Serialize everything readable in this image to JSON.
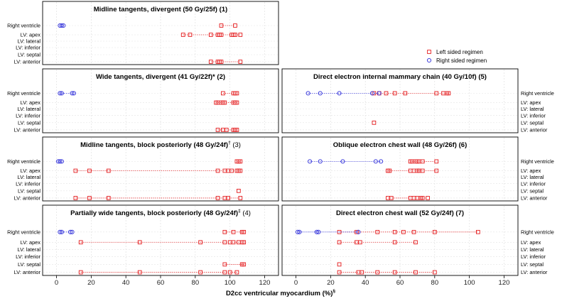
{
  "chart_data": {
    "type": "scatter",
    "xlabel": "D2cc ventricular myocardium (%)",
    "xlabel_sup": "§",
    "xlim": [
      -8,
      128
    ],
    "xticks": [
      0,
      20,
      40,
      60,
      80,
      100,
      120
    ],
    "grid": true,
    "row_labels": [
      "Right ventricle",
      "LV: apex",
      "LV: lateral",
      "LV: inferior",
      "LV: septal",
      "LV: anterior"
    ],
    "legend": {
      "position": "right",
      "entries": [
        {
          "label": "Left sided regimen",
          "color": "#e41a1c",
          "marker": "square"
        },
        {
          "label": "Right sided regimen",
          "color": "#2b2bd9",
          "marker": "circle"
        }
      ]
    },
    "panels": [
      {
        "title": "Midline tangents, divergent (50 Gy/25f)",
        "title_sup": "",
        "title_num": "(1)",
        "left": {
          "Right ventricle": [
            95,
            103
          ],
          "LV: apex": [
            73,
            77,
            89,
            93,
            94,
            95,
            101,
            102,
            103,
            106
          ],
          "LV: anterior": [
            89,
            93,
            94,
            95,
            106
          ]
        },
        "right": {
          "Right ventricle": [
            2,
            3,
            4
          ]
        }
      },
      {
        "title": "Wide tangents, divergent (41 Gy/22f)*",
        "title_sup": "",
        "title_num": "(2)",
        "left": {
          "Right ventricle": [
            96,
            102,
            103,
            104
          ],
          "LV: apex": [
            92,
            93,
            95,
            96,
            97,
            102,
            103,
            104
          ],
          "LV: anterior": [
            93,
            96,
            98,
            102,
            103,
            104
          ]
        },
        "right": {
          "Right ventricle": [
            2,
            3,
            9,
            10
          ]
        }
      },
      {
        "title": "Midline tangents, block posteriorly (48 Gy/24f)",
        "title_sup": "†",
        "title_num": "(3)",
        "left": {
          "Right ventricle": [
            104,
            105,
            106
          ],
          "LV: apex": [
            11,
            19,
            30,
            93,
            97,
            99,
            101,
            104,
            105,
            106
          ],
          "LV: septal": [
            105
          ],
          "LV: anterior": [
            11,
            19,
            30,
            93,
            97,
            99,
            106
          ]
        },
        "right": {
          "Right ventricle": [
            1,
            2,
            3
          ]
        }
      },
      {
        "title": "Partially wide tangents, block posteriorly (48 Gy/24f)",
        "title_sup": "‡",
        "title_num": "(4)",
        "left": {
          "Right ventricle": [
            97,
            102,
            107,
            108
          ],
          "LV: apex": [
            14,
            48,
            83,
            97,
            100,
            102,
            105,
            107,
            108
          ],
          "LV: septal": [
            97,
            107,
            108
          ],
          "LV: anterior": [
            14,
            48,
            83,
            97,
            100,
            104
          ]
        },
        "right": {
          "Right ventricle": [
            2,
            3,
            8,
            9
          ]
        }
      },
      {
        "title": "Direct electron internal mammary chain (40 Gy/10f)",
        "title_sup": "",
        "title_num": "(5)",
        "left": {
          "Right ventricle": [
            45,
            48,
            52,
            57,
            63,
            81,
            85,
            87,
            88
          ],
          "LV: septal": [
            45
          ]
        },
        "right": {
          "Right ventricle": [
            7,
            14,
            25,
            44,
            48
          ]
        }
      },
      {
        "title": "Oblique electron chest wall (48 Gy/26f)",
        "title_sup": "",
        "title_num": "(6)",
        "left": {
          "Right ventricle": [
            66,
            67,
            69,
            70,
            71,
            73,
            81
          ],
          "LV: apex": [
            53,
            54,
            66,
            68,
            70,
            71,
            73,
            81
          ],
          "LV: anterior": [
            53,
            55,
            66,
            68,
            70,
            72,
            73,
            76
          ]
        },
        "right": {
          "Right ventricle": [
            8,
            14,
            27,
            46,
            49
          ]
        }
      },
      {
        "title": "Direct electron chest wall (52 Gy/24f)",
        "title_sup": "",
        "title_num": "(7)",
        "left": {
          "Right ventricle": [
            25,
            35,
            47,
            57,
            62,
            68,
            80,
            105
          ],
          "LV: apex": [
            25,
            35,
            37,
            57,
            69
          ],
          "LV: septal": [
            25
          ],
          "LV: anterior": [
            25,
            36,
            38,
            47,
            57,
            69,
            80
          ]
        },
        "right": {
          "Right ventricle": [
            1,
            2,
            12,
            13,
            36
          ]
        }
      }
    ]
  }
}
